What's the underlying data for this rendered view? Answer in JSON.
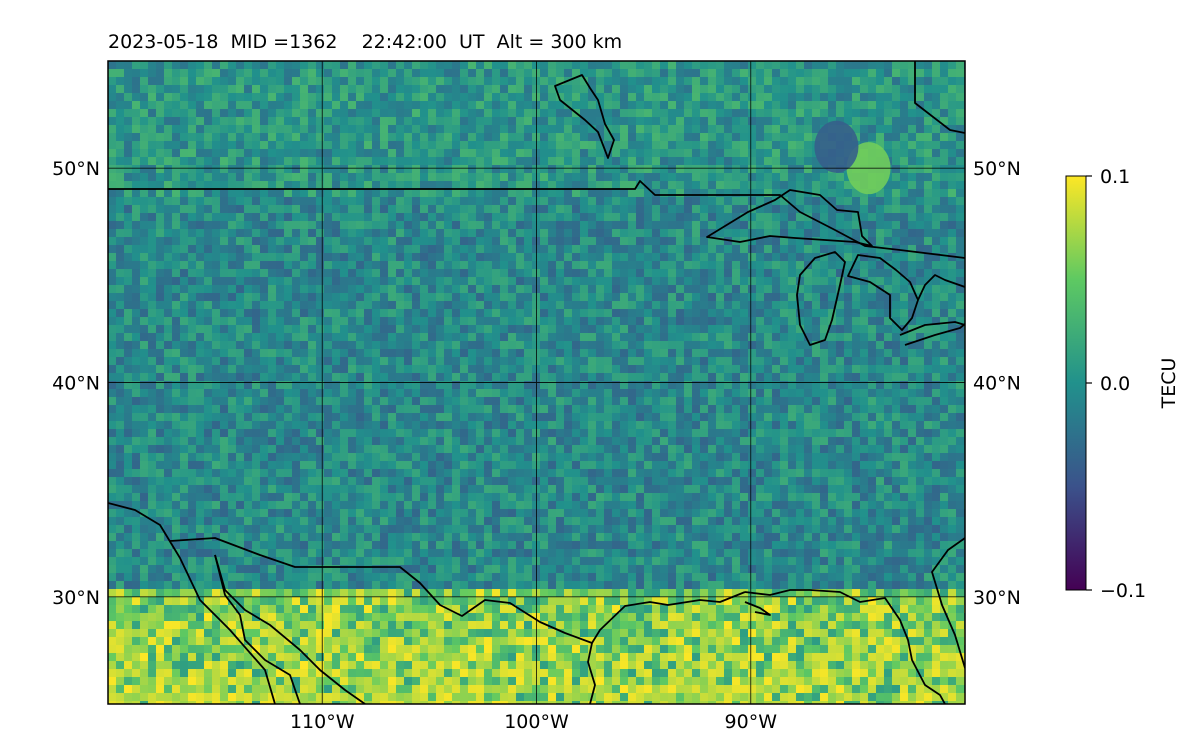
{
  "title": "2023-05-18  MID =1362    22:42:00  UT  Alt = 300 km",
  "map": {
    "lon_range": [
      -120,
      -80
    ],
    "lat_range": [
      25,
      55
    ],
    "gridlines": true,
    "lon_ticks": [
      {
        "value": -110,
        "label": "110°W"
      },
      {
        "value": -100,
        "label": "100°W"
      },
      {
        "value": -90,
        "label": "90°W"
      }
    ],
    "lat_ticks": [
      {
        "value": 50,
        "label": "50°N"
      },
      {
        "value": 40,
        "label": "40°N"
      },
      {
        "value": 30,
        "label": "30°N"
      }
    ],
    "colormap": [
      "#440154",
      "#3b528b",
      "#21918c",
      "#5ec962",
      "#fde725"
    ],
    "field_value_range": [
      -0.1,
      0.1
    ],
    "features": [
      {
        "kind": "positive-anomaly",
        "lon_range": [
          -120,
          -80
        ],
        "lat_range": [
          25,
          30.5
        ],
        "note": "strong positive TECU along Gulf coast"
      },
      {
        "kind": "positive-anomaly",
        "lon": -84.5,
        "lat": 50.0
      },
      {
        "kind": "negative-anomaly",
        "lon": -86.0,
        "lat": 51.0
      }
    ]
  },
  "colorbar": {
    "label": "TECU",
    "min": -0.1,
    "max": 0.1,
    "ticks": [
      {
        "value": 0.1,
        "label": "0.1"
      },
      {
        "value": 0.0,
        "label": "0.0"
      },
      {
        "value": -0.1,
        "label": "−0.1"
      }
    ]
  }
}
